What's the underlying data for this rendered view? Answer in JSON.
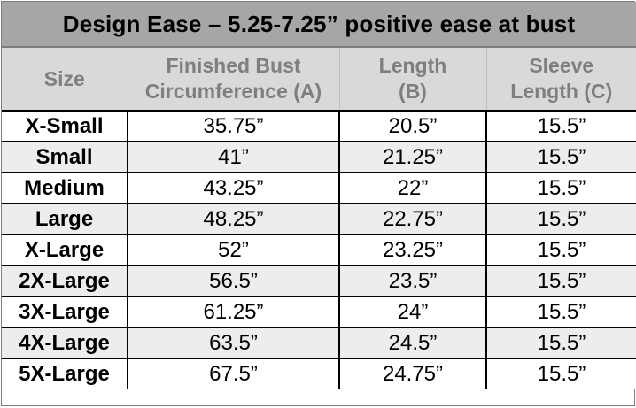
{
  "table": {
    "title": "Design Ease – 5.25-7.25” positive ease at bust",
    "headers": [
      {
        "line1": "Size",
        "line2": ""
      },
      {
        "line1": "Finished Bust",
        "line2": "Circumference (A)"
      },
      {
        "line1": "Length",
        "line2": "(B)"
      },
      {
        "line1": "Sleeve",
        "line2": "Length (C)"
      }
    ],
    "rows": [
      [
        "X-Small",
        "35.75”",
        "20.5”",
        "15.5”"
      ],
      [
        "Small",
        "41”",
        "21.25”",
        "15.5”"
      ],
      [
        "Medium",
        "43.25”",
        "22”",
        "15.5”"
      ],
      [
        "Large",
        "48.25”",
        "22.75”",
        "15.5”"
      ],
      [
        "X-Large",
        "52”",
        "23.25”",
        "15.5”"
      ],
      [
        "2X-Large",
        "56.5”",
        "23.5”",
        "15.5”"
      ],
      [
        "3X-Large",
        "61.25”",
        "24”",
        "15.5”"
      ],
      [
        "4X-Large",
        "63.5”",
        "24.5”",
        "15.5”"
      ],
      [
        "5X-Large",
        "67.5”",
        "24.75”",
        "15.5”"
      ]
    ]
  }
}
